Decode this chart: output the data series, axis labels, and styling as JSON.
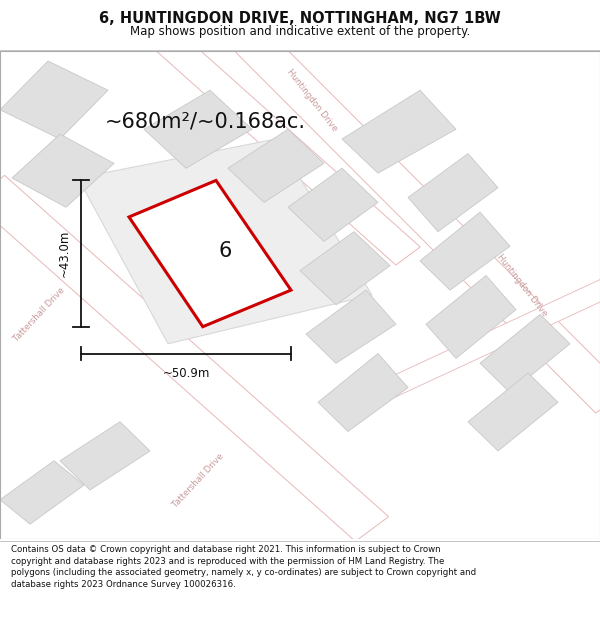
{
  "title": "6, HUNTINGDON DRIVE, NOTTINGHAM, NG7 1BW",
  "subtitle": "Map shows position and indicative extent of the property.",
  "area_text": "~680m²/~0.168ac.",
  "dim_width": "~50.9m",
  "dim_height": "~43.0m",
  "property_number": "6",
  "footer_text": "Contains OS data © Crown copyright and database right 2021. This information is subject to Crown copyright and database rights 2023 and is reproduced with the permission of HM Land Registry. The polygons (including the associated geometry, namely x, y co-ordinates) are subject to Crown copyright and database rights 2023 Ordnance Survey 100026316.",
  "bg_color": "#ffffff",
  "road_fill": "#ffffff",
  "road_edge": "#e8b8b8",
  "building_fill": "#e0e0e0",
  "building_edge": "#cccccc",
  "property_fill": "#ffffff",
  "property_edge": "#cc0000",
  "dim_color": "#111111",
  "road_label_color": "#c89898",
  "title_fontsize": 10.5,
  "subtitle_fontsize": 8.5,
  "area_fontsize": 15,
  "dim_fontsize": 8.5,
  "number_fontsize": 15,
  "footer_fontsize": 6.2,
  "title_bold": true
}
